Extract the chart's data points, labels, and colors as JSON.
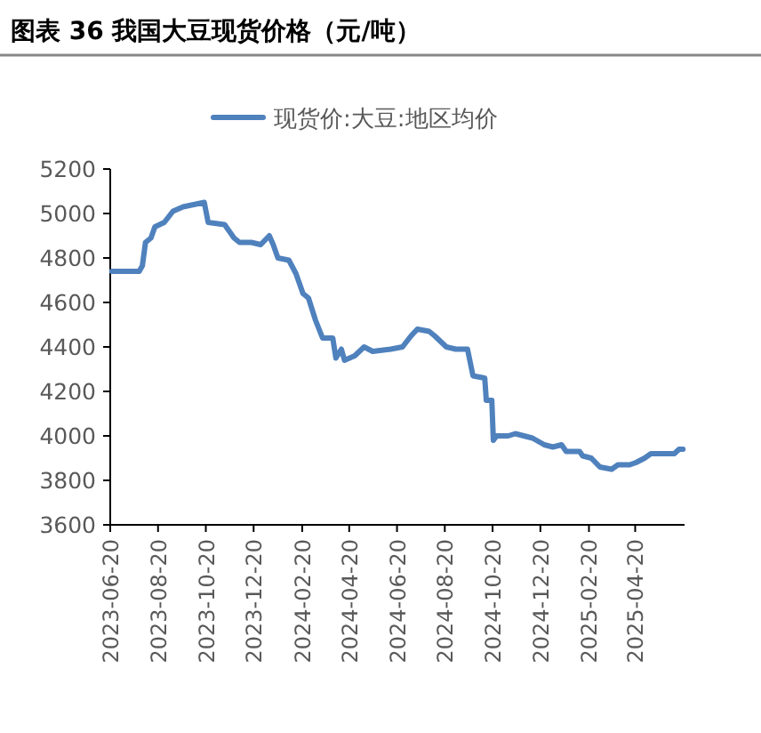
{
  "chart_data": {
    "type": "line",
    "title": "图表 36 我国大豆现货价格（元/吨）",
    "legend": "top",
    "x": [
      "2023-06-22",
      "2023-07-27",
      "2023-07-31",
      "2023-08-04",
      "2023-08-11",
      "2023-08-16",
      "2023-08-28",
      "2023-09-08",
      "2023-09-21",
      "2023-10-18",
      "2023-10-23",
      "2023-11-13",
      "2023-11-25",
      "2023-12-02",
      "2023-12-17",
      "2023-12-29",
      "2024-01-09",
      "2024-01-14",
      "2024-01-20",
      "2024-02-03",
      "2024-02-12",
      "2024-02-21",
      "2024-02-28",
      "2024-03-08",
      "2024-03-17",
      "2024-03-30",
      "2024-04-03",
      "2024-04-10",
      "2024-04-14",
      "2024-04-27",
      "2024-05-09",
      "2024-05-20",
      "2024-06-12",
      "2024-06-27",
      "2024-07-08",
      "2024-07-16",
      "2024-07-31",
      "2024-08-07",
      "2024-08-22",
      "2024-09-03",
      "2024-09-18",
      "2024-09-25",
      "2024-10-10",
      "2024-10-12",
      "2024-10-19",
      "2024-10-21",
      "2024-10-25",
      "2024-11-09",
      "2024-11-18",
      "2024-12-10",
      "2024-12-25",
      "2025-01-05",
      "2025-01-16",
      "2025-01-22",
      "2025-02-08",
      "2025-02-12",
      "2025-02-23",
      "2025-03-06",
      "2025-03-21",
      "2025-03-29",
      "2025-04-13",
      "2025-04-21",
      "2025-05-02",
      "2025-05-10",
      "2025-06-09",
      "2025-06-15",
      "2025-06-20"
    ],
    "series": [
      {
        "name": "现货价:大豆:地区均价",
        "color": "#4f81bd",
        "values": [
          4740,
          4740,
          4765,
          4870,
          4890,
          4940,
          4960,
          5010,
          5030,
          5050,
          4960,
          4950,
          4890,
          4870,
          4870,
          4860,
          4900,
          4860,
          4800,
          4790,
          4730,
          4640,
          4620,
          4520,
          4440,
          4440,
          4350,
          4390,
          4340,
          4360,
          4400,
          4380,
          4390,
          4400,
          4450,
          4480,
          4470,
          4450,
          4400,
          4390,
          4390,
          4270,
          4260,
          4160,
          4160,
          3980,
          4000,
          4000,
          4010,
          3990,
          3960,
          3950,
          3960,
          3930,
          3930,
          3910,
          3900,
          3860,
          3850,
          3870,
          3870,
          3880,
          3900,
          3920,
          3920,
          3940,
          3940
        ]
      }
    ],
    "xlim": [
      "2023-06-20",
      "2025-06-22"
    ],
    "xticks": [
      "2023-06-20",
      "2023-08-20",
      "2023-10-20",
      "2023-12-20",
      "2024-02-20",
      "2024-04-20",
      "2024-06-20",
      "2024-08-20",
      "2024-10-20",
      "2024-12-20",
      "2025-02-20",
      "2025-04-20"
    ],
    "ylim": [
      3600,
      5200
    ],
    "yticks": [
      3600,
      3800,
      4000,
      4200,
      4400,
      4600,
      4800,
      5000,
      5200
    ]
  }
}
